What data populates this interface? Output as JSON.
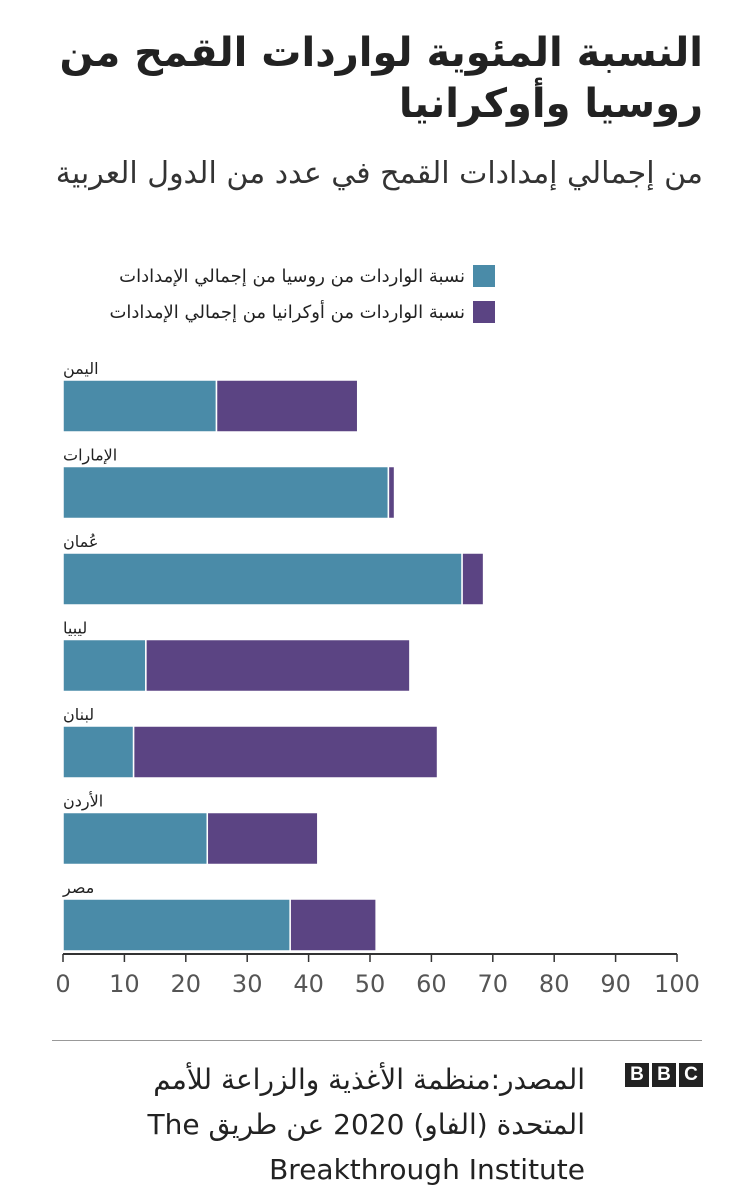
{
  "header": {
    "title": "النسبة المئوية لواردات القمح من روسيا وأوكرانيا",
    "subtitle": "من إجمالي إمدادات القمح في عدد من الدول العربية"
  },
  "chart_data": {
    "type": "bar",
    "orientation": "horizontal",
    "stacked": true,
    "categories": [
      "اليمن",
      "الإمارات",
      "عُمان",
      "ليبيا",
      "لبنان",
      "الأردن",
      "مصر"
    ],
    "series": [
      {
        "name": "نسبة الواردات من روسيا من إجمالي الإمدادات",
        "color": "#4a8ba8",
        "values": [
          25,
          53,
          65,
          13.5,
          11.5,
          23.5,
          37
        ]
      },
      {
        "name": "نسبة الواردات من أوكرانيا من إجمالي الإمدادات",
        "color": "#5b4483",
        "values": [
          23,
          1,
          3.5,
          43,
          49.5,
          18,
          14
        ]
      }
    ],
    "xlim": [
      0,
      100
    ],
    "xticks": [
      "0",
      "10",
      "20",
      "30",
      "40",
      "50",
      "60",
      "70",
      "80",
      "90",
      "100"
    ],
    "legend_position": "top"
  },
  "footer": {
    "source": "المصدر:منظمة الأغذية والزراعة للأمم المتحدة (الفاو) 2020 عن طريق The Breakthrough Institute",
    "logo_letters": [
      "B",
      "B",
      "C"
    ]
  }
}
